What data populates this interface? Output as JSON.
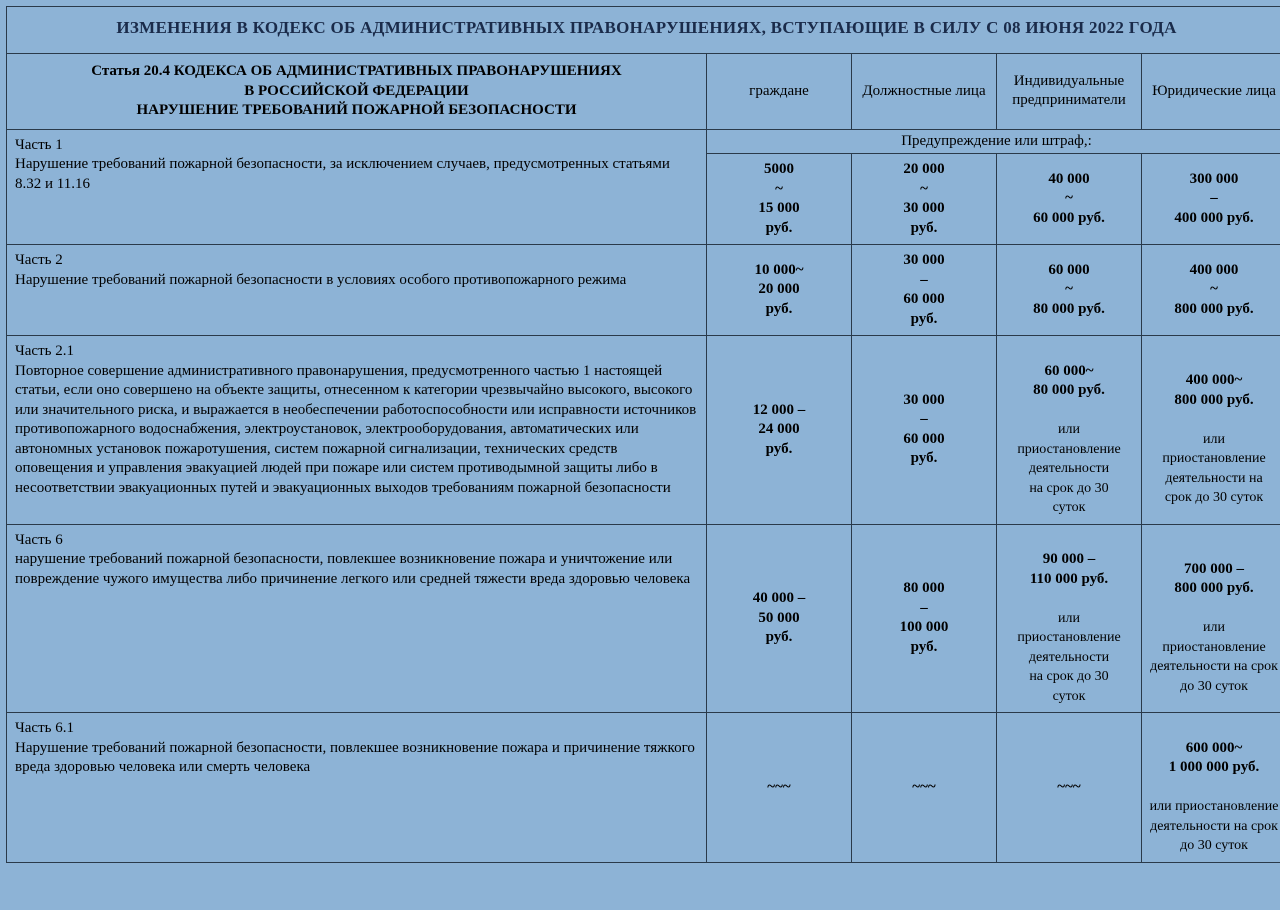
{
  "title": "ИЗМЕНЕНИЯ В КОДЕКС ОБ АДМИНИСТРАТИВНЫХ ПРАВОНАРУШЕНИЯХ,  ВСТУПАЮЩИЕ В СИЛУ С 08 ИЮНЯ 2022 ГОДА",
  "header": {
    "left_line1": "Статья 20.4 КОДЕКСА ОБ АДМИНИСТРАТИВНЫХ ПРАВОНАРУШЕНИЯХ",
    "left_line2": "В РОССИЙСКОЙ ФЕДЕРАЦИИ",
    "left_line3": "НАРУШЕНИЕ ТРЕБОВАНИЙ ПОЖАРНОЙ БЕЗОПАСНОСТИ",
    "c1": "граждане",
    "c2": "Должностные лица",
    "c3": "Индивидуальные предприниматели",
    "c4": "Юридические лица"
  },
  "penalty_label": "Предупреждение или штраф,:",
  "rows": [
    {
      "part": "Часть 1",
      "text": "Нарушение требований пожарной безопасности, за исключением случаев, предусмотренных статьями 8.32 и 11.16",
      "v1": "5000\n~\n15 000\nруб.",
      "v2": "20 000\n~\n30 000\nруб.",
      "v3": "40 000\n~\n60 000 руб.",
      "v4": "300 000\n–\n400 000 руб."
    },
    {
      "part": "Часть 2",
      "text": "Нарушение требований пожарной безопасности в условиях особого противопожарного режима",
      "v1": "10 000~\n20 000\nруб.",
      "v2": "30 000\n–\n60 000\nруб.",
      "v3": "60 000\n~\n80 000 руб.",
      "v4": "400 000\n~\n800 000 руб."
    },
    {
      "part": "Часть 2.1",
      "text": "Повторное совершение административного правонарушения, предусмотренного частью 1 настоящей статьи, если оно совершено на объекте защиты, отнесенном к категории чрезвычайно высокого, высокого или значительного риска, и выражается в необеспечении работоспособности или исправности источников противопожарного водоснабжения, электроустановок, электрооборудования, автоматических или автономных установок пожаротушения, систем пожарной сигнализации, технических средств оповещения и управления эвакуацией людей при пожаре или систем противодымной защиты либо в несоответствии эвакуационных путей и эвакуационных выходов требованиям пожарной безопасности",
      "v1": "12 000 –\n24 000\nруб.",
      "v2": "30 000\n–\n60 000\nруб.",
      "v3_a": "60 000~\n80 000 руб.",
      "v3_b": "или\nприостановление\nдеятельности\nна срок до 30\nсуток",
      "v4_a": "400 000~\n800 000 руб.",
      "v4_b": "или\nприостановление\nдеятельности на\nсрок до 30 суток"
    },
    {
      "part": "Часть 6",
      "text": "нарушение требований пожарной безопасности, повлекшее возникновение пожара и уничтожение или повреждение чужого имущества либо причинение легкого или средней тяжести вреда здоровью человека",
      "v1": "40 000 –\n50 000\nруб.",
      "v2": "80 000\n–\n100 000\nруб.",
      "v3_a": "90 000 –\n110 000 руб.",
      "v3_b": "или\nприостановление\nдеятельности\nна срок до 30\nсуток",
      "v4_a": "700 000 –\n800 000 руб.",
      "v4_b": "или\nприостановление\nдеятельности на срок\nдо 30 суток"
    },
    {
      "part": "Часть 6.1",
      "text": "Нарушение требований пожарной безопасности, повлекшее возникновение пожара и причинение тяжкого вреда здоровью человека или смерть человека",
      "v1": "~~~",
      "v2": "~~~",
      "v3": "~~~",
      "v4_a": "600 000~\n1 000 000 руб.",
      "v4_b": "или приостановление\nдеятельности на срок\nдо 30 суток"
    }
  ],
  "colors": {
    "background": "#8db3d6",
    "border": "#2a3a4a",
    "title_text": "#1a2b4a"
  }
}
